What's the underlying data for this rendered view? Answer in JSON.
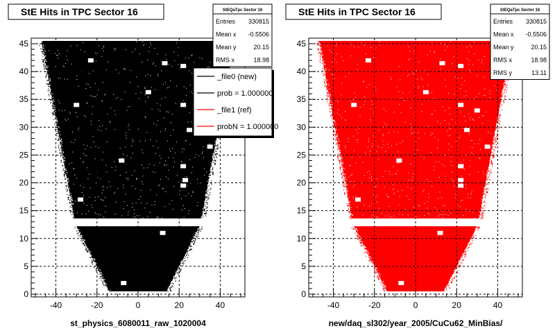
{
  "colors": {
    "file0": "#000000",
    "file1": "#ff0000",
    "grid": "#000000"
  },
  "footer": "",
  "chart_data": [
    {
      "type": "scatter",
      "title": "StE Hits in TPC Sector 16",
      "xlabel": "st_physics_6080011_raw_1020004",
      "ylabel": "",
      "xlim": [
        -52,
        52
      ],
      "ylim": [
        -0.5,
        46
      ],
      "xticks": [
        -40,
        -20,
        0,
        20,
        40
      ],
      "yticks": [
        0,
        5,
        10,
        15,
        20,
        25,
        30,
        35,
        40,
        45
      ],
      "grid": true,
      "fill_color": "#000000",
      "stats": {
        "name": "StEQaTpc Sector 16",
        "rows": [
          {
            "label": "Entries",
            "value": "330815"
          },
          {
            "label": "Mean x",
            "value": "-0.5506"
          },
          {
            "label": "Mean y",
            "value": "20.15"
          },
          {
            "label": "RMS x",
            "value": "18.98"
          }
        ]
      },
      "legend": {
        "entries": [
          {
            "label": "_file0 (new)",
            "color": "#000000"
          },
          {
            "label": "prob = 1.000000",
            "color": "#000000"
          },
          {
            "label": "_file1 (ref)",
            "color": "#ff0000"
          },
          {
            "label": "probN = 1.000000",
            "color": "#ff0000"
          }
        ]
      },
      "region": {
        "upper_y": [
          13.6,
          45.5
        ],
        "upper_half_width_bottom": 31,
        "upper_half_width_top": 47,
        "lower_y": [
          0.5,
          12.2
        ],
        "lower_half_width_bottom": 14,
        "lower_half_width_top": 30
      },
      "holes": [
        [
          -23,
          42
        ],
        [
          13,
          41.5
        ],
        [
          22,
          41
        ],
        [
          5,
          36.3
        ],
        [
          -30,
          34
        ],
        [
          22,
          34
        ],
        [
          25,
          29.5
        ],
        [
          -8,
          24
        ],
        [
          22,
          23
        ],
        [
          23,
          20.5
        ],
        [
          35,
          26.5
        ],
        [
          -28,
          17
        ],
        [
          22,
          19.5
        ],
        [
          12,
          11
        ],
        [
          -7,
          2
        ]
      ]
    },
    {
      "type": "scatter",
      "title": "StE Hits in TPC Sector 16",
      "xlabel": "new/daq_sl302/year_2005/CuCu62_MinBias/",
      "ylabel": "",
      "xlim": [
        -52,
        52
      ],
      "ylim": [
        -0.5,
        46
      ],
      "xticks": [
        -40,
        -20,
        0,
        20,
        40
      ],
      "yticks": [
        0,
        5,
        10,
        15,
        20,
        25,
        30,
        35,
        40,
        45
      ],
      "grid": true,
      "fill_color": "#ff0000",
      "stats": {
        "name": "StEQaTpc Sector 16",
        "rows": [
          {
            "label": "Entries",
            "value": "330815"
          },
          {
            "label": "Mean x",
            "value": "-0.5506"
          },
          {
            "label": "Mean y",
            "value": "20.15"
          },
          {
            "label": "RMS x",
            "value": "18.98"
          },
          {
            "label": "RMS y",
            "value": "13.11"
          }
        ]
      },
      "region": {
        "upper_y": [
          13.6,
          45.5
        ],
        "upper_half_width_bottom": 31,
        "upper_half_width_top": 47,
        "lower_y": [
          0.5,
          12.2
        ],
        "lower_half_width_bottom": 14,
        "lower_half_width_top": 30
      },
      "holes": [
        [
          -23,
          42
        ],
        [
          13,
          41.5
        ],
        [
          22,
          41
        ],
        [
          5,
          36.3
        ],
        [
          -30,
          34
        ],
        [
          22,
          34
        ],
        [
          30,
          33
        ],
        [
          25,
          29.5
        ],
        [
          -8,
          24
        ],
        [
          22,
          23
        ],
        [
          22,
          20.5
        ],
        [
          35,
          26.5
        ],
        [
          -28,
          17
        ],
        [
          22,
          19.5
        ],
        [
          12,
          11
        ],
        [
          -7,
          2
        ]
      ]
    }
  ]
}
